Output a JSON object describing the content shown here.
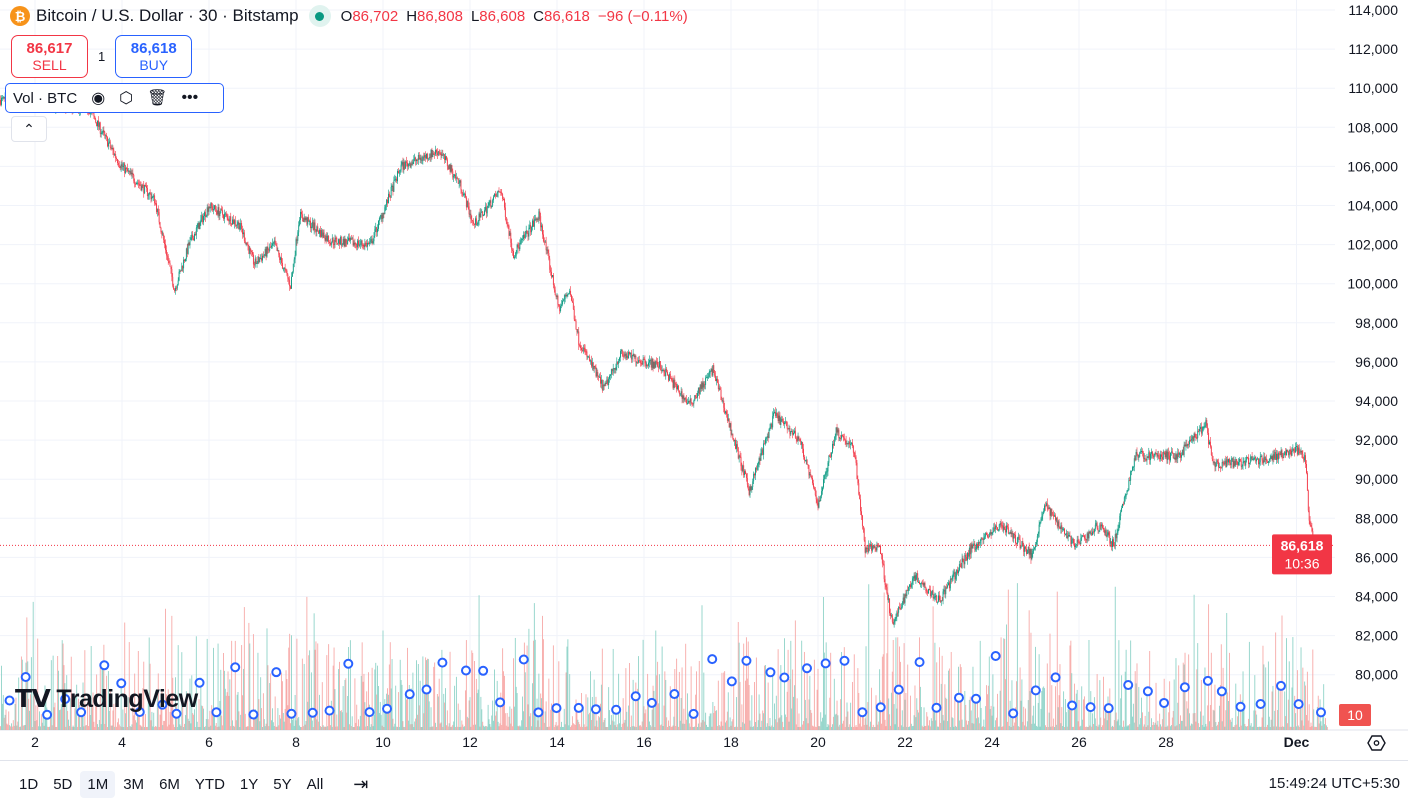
{
  "header": {
    "symbol_icon": "bitcoin-icon",
    "title": "Bitcoin / U.S. Dollar · 30 · Bitstamp",
    "status_color": "#089981",
    "ohlc": {
      "o_label": "O",
      "o": "86,702",
      "h_label": "H",
      "h": "86,808",
      "l_label": "L",
      "l": "86,608",
      "c_label": "C",
      "c": "86,618",
      "change": "−96 (−0.11%)"
    }
  },
  "trade": {
    "sell_price": "86,617",
    "sell_label": "SELL",
    "spread": "1",
    "buy_price": "86,618",
    "buy_label": "BUY"
  },
  "indicator": {
    "label": "Vol · BTC",
    "icons": [
      "eye-icon",
      "settings-icon",
      "trash-icon",
      "more-icon"
    ]
  },
  "logo": "TradingView",
  "last_price": {
    "price": "86,618",
    "countdown": "10:36",
    "color": "#f23645"
  },
  "volume_badge": "10",
  "ranges": [
    "1D",
    "5D",
    "1M",
    "3M",
    "6M",
    "YTD",
    "1Y",
    "5Y",
    "All"
  ],
  "active_range": "1M",
  "clock": "15:49:24 UTC+5:30",
  "colors": {
    "up": "#089981",
    "down": "#f23645",
    "vol_up": "#8fd3c8",
    "vol_down": "#f7a9a7"
  },
  "chart_data": {
    "type": "candlestick",
    "interval": "30",
    "ylim": [
      78000,
      114000
    ],
    "y_ticks": [
      "114,000",
      "112,000",
      "110,000",
      "108,000",
      "106,000",
      "104,000",
      "102,000",
      "100,000",
      "98,000",
      "96,000",
      "94,000",
      "92,000",
      "90,000",
      "88,000",
      "86,000",
      "84,000",
      "82,000",
      "80,000"
    ],
    "x_ticks": [
      "2",
      "4",
      "6",
      "8",
      "10",
      "12",
      "14",
      "16",
      "18",
      "20",
      "22",
      "24",
      "26",
      "28",
      "Dec"
    ],
    "grid": true,
    "price_path": [
      [
        "11-01 05",
        109400
      ],
      [
        "11-03 06",
        108900
      ],
      [
        "11-03 23",
        106100
      ],
      [
        "11-04 18",
        104300
      ],
      [
        "11-05 05",
        99700
      ],
      [
        "11-05 13",
        102000
      ],
      [
        "11-06 00",
        104000
      ],
      [
        "11-06 17",
        103000
      ],
      [
        "11-07 01",
        101000
      ],
      [
        "11-07 12",
        102000
      ],
      [
        "11-07 21",
        99900
      ],
      [
        "11-08 02",
        103500
      ],
      [
        "11-08 19",
        102200
      ],
      [
        "11-09 17",
        102000
      ],
      [
        "11-10 10",
        106000
      ],
      [
        "11-11 07",
        106800
      ],
      [
        "11-11 19",
        105000
      ],
      [
        "11-12 02",
        103000
      ],
      [
        "11-12 17",
        104800
      ],
      [
        "11-13 00",
        101500
      ],
      [
        "11-13 14",
        103500
      ],
      [
        "11-14 01",
        98700
      ],
      [
        "11-14 07",
        99700
      ],
      [
        "11-14 12",
        97100
      ],
      [
        "11-15 02",
        94600
      ],
      [
        "11-15 11",
        96400
      ],
      [
        "11-16 09",
        95800
      ],
      [
        "11-17 01",
        93800
      ],
      [
        "11-17 14",
        95600
      ],
      [
        "11-18 10",
        89400
      ],
      [
        "11-19 00",
        93300
      ],
      [
        "11-19 14",
        92000
      ],
      [
        "11-20 00",
        88700
      ],
      [
        "11-20 10",
        92500
      ],
      [
        "11-20 20",
        91500
      ],
      [
        "11-21 02",
        86400
      ],
      [
        "11-21 10",
        86600
      ],
      [
        "11-21 17",
        82500
      ],
      [
        "11-22 05",
        85100
      ],
      [
        "11-22 19",
        83800
      ],
      [
        "11-23 12",
        86400
      ],
      [
        "11-24 05",
        87700
      ],
      [
        "11-24 22",
        86100
      ],
      [
        "11-25 05",
        88700
      ],
      [
        "11-25 22",
        86600
      ],
      [
        "11-26 12",
        87700
      ],
      [
        "11-26 19",
        86600
      ],
      [
        "11-27 07",
        91200
      ],
      [
        "11-28 07",
        91200
      ],
      [
        "11-28 22",
        92800
      ],
      [
        "11-29 02",
        90700
      ],
      [
        "11-30 05",
        91000
      ],
      [
        "12-01 00",
        91500
      ],
      [
        "12-01 05",
        91000
      ],
      [
        "12-01 07",
        87700
      ],
      [
        "12-01 12",
        85800
      ],
      [
        "12-01 17",
        86618
      ]
    ]
  }
}
